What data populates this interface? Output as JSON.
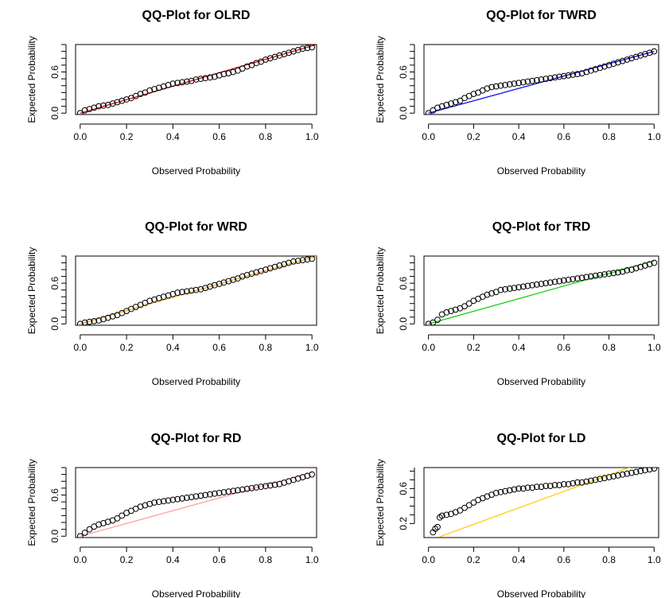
{
  "chart_data": [
    {
      "type": "scatter",
      "title": "QQ-Plot for OLRD",
      "xlabel": "Observed Probability",
      "ylabel": "Expected Probability",
      "xlim": [
        -0.02,
        1.02
      ],
      "ylim": [
        -0.02,
        1.0
      ],
      "xticks": [
        "0.0",
        "0.2",
        "0.4",
        "0.6",
        "0.8",
        "1.0"
      ],
      "yticks": [
        "0.0",
        "0.6"
      ],
      "line_color": "#cc0000",
      "reference_line": {
        "x": [
          0.0,
          1.02
        ],
        "y": [
          0.0,
          1.0
        ]
      },
      "points": {
        "x": [
          0.0,
          0.02,
          0.04,
          0.06,
          0.08,
          0.1,
          0.12,
          0.14,
          0.16,
          0.18,
          0.2,
          0.22,
          0.24,
          0.26,
          0.28,
          0.3,
          0.32,
          0.34,
          0.36,
          0.38,
          0.4,
          0.42,
          0.44,
          0.46,
          0.48,
          0.5,
          0.52,
          0.54,
          0.56,
          0.58,
          0.6,
          0.62,
          0.64,
          0.66,
          0.68,
          0.7,
          0.72,
          0.74,
          0.76,
          0.78,
          0.8,
          0.82,
          0.84,
          0.86,
          0.88,
          0.9,
          0.92,
          0.94,
          0.96,
          0.98,
          1.0
        ],
        "y": [
          0.0,
          0.04,
          0.06,
          0.08,
          0.1,
          0.11,
          0.12,
          0.14,
          0.16,
          0.18,
          0.2,
          0.22,
          0.25,
          0.28,
          0.3,
          0.33,
          0.35,
          0.37,
          0.39,
          0.41,
          0.43,
          0.44,
          0.45,
          0.46,
          0.47,
          0.49,
          0.5,
          0.51,
          0.52,
          0.53,
          0.55,
          0.57,
          0.58,
          0.6,
          0.62,
          0.65,
          0.68,
          0.7,
          0.73,
          0.75,
          0.78,
          0.8,
          0.82,
          0.84,
          0.86,
          0.88,
          0.9,
          0.92,
          0.94,
          0.95,
          0.96
        ]
      }
    },
    {
      "type": "scatter",
      "title": "QQ-Plot for TWRD",
      "xlabel": "Observed Probability",
      "ylabel": "Expected Probability",
      "xlim": [
        -0.02,
        1.02
      ],
      "ylim": [
        -0.02,
        1.0
      ],
      "xticks": [
        "0.0",
        "0.2",
        "0.4",
        "0.6",
        "0.8",
        "1.0"
      ],
      "yticks": [
        "0.0",
        "0.6"
      ],
      "line_color": "#0000ee",
      "reference_line": {
        "x": [
          0.0,
          1.0
        ],
        "y": [
          0.0,
          0.9
        ]
      },
      "points": {
        "x": [
          0.0,
          0.02,
          0.04,
          0.06,
          0.08,
          0.1,
          0.12,
          0.14,
          0.16,
          0.18,
          0.2,
          0.22,
          0.24,
          0.26,
          0.28,
          0.3,
          0.32,
          0.34,
          0.36,
          0.38,
          0.4,
          0.42,
          0.44,
          0.46,
          0.48,
          0.5,
          0.52,
          0.54,
          0.56,
          0.58,
          0.6,
          0.62,
          0.64,
          0.66,
          0.68,
          0.7,
          0.72,
          0.74,
          0.76,
          0.78,
          0.8,
          0.82,
          0.84,
          0.86,
          0.88,
          0.9,
          0.92,
          0.94,
          0.96,
          0.98,
          1.0
        ],
        "y": [
          0.0,
          0.04,
          0.08,
          0.1,
          0.12,
          0.14,
          0.16,
          0.18,
          0.22,
          0.25,
          0.28,
          0.3,
          0.33,
          0.36,
          0.38,
          0.39,
          0.4,
          0.41,
          0.42,
          0.43,
          0.44,
          0.45,
          0.46,
          0.47,
          0.48,
          0.49,
          0.5,
          0.51,
          0.52,
          0.53,
          0.54,
          0.55,
          0.56,
          0.57,
          0.58,
          0.6,
          0.62,
          0.64,
          0.66,
          0.68,
          0.7,
          0.72,
          0.74,
          0.76,
          0.78,
          0.8,
          0.82,
          0.84,
          0.86,
          0.88,
          0.9
        ]
      }
    },
    {
      "type": "scatter",
      "title": "QQ-Plot for WRD",
      "xlabel": "Observed Probability",
      "ylabel": "Expected Probability",
      "xlim": [
        -0.02,
        1.02
      ],
      "ylim": [
        -0.02,
        1.0
      ],
      "xticks": [
        "0.0",
        "0.2",
        "0.4",
        "0.6",
        "0.8",
        "1.0"
      ],
      "yticks": [
        "0.0",
        "0.6"
      ],
      "line_color": "#f0a020",
      "reference_line": {
        "x": [
          0.0,
          1.02
        ],
        "y": [
          0.0,
          1.0
        ]
      },
      "points": {
        "x": [
          0.0,
          0.02,
          0.04,
          0.06,
          0.08,
          0.1,
          0.12,
          0.14,
          0.16,
          0.18,
          0.2,
          0.22,
          0.24,
          0.26,
          0.28,
          0.3,
          0.32,
          0.34,
          0.36,
          0.38,
          0.4,
          0.42,
          0.44,
          0.46,
          0.48,
          0.5,
          0.52,
          0.54,
          0.56,
          0.58,
          0.6,
          0.62,
          0.64,
          0.66,
          0.68,
          0.7,
          0.72,
          0.74,
          0.76,
          0.78,
          0.8,
          0.82,
          0.84,
          0.86,
          0.88,
          0.9,
          0.92,
          0.94,
          0.96,
          0.98,
          1.0
        ],
        "y": [
          0.0,
          0.02,
          0.03,
          0.04,
          0.05,
          0.07,
          0.09,
          0.11,
          0.13,
          0.16,
          0.19,
          0.22,
          0.25,
          0.28,
          0.31,
          0.34,
          0.36,
          0.38,
          0.4,
          0.42,
          0.44,
          0.46,
          0.47,
          0.48,
          0.49,
          0.5,
          0.51,
          0.53,
          0.55,
          0.57,
          0.59,
          0.61,
          0.63,
          0.65,
          0.67,
          0.7,
          0.72,
          0.74,
          0.76,
          0.78,
          0.8,
          0.82,
          0.84,
          0.86,
          0.88,
          0.9,
          0.92,
          0.93,
          0.94,
          0.95,
          0.96
        ]
      }
    },
    {
      "type": "scatter",
      "title": "QQ-Plot for TRD",
      "xlabel": "Observed Probability",
      "ylabel": "Expected Probability",
      "xlim": [
        -0.02,
        1.02
      ],
      "ylim": [
        -0.02,
        1.0
      ],
      "xticks": [
        "0.0",
        "0.2",
        "0.4",
        "0.6",
        "0.8",
        "1.0"
      ],
      "yticks": [
        "0.0",
        "0.6"
      ],
      "line_color": "#00cc00",
      "reference_line": {
        "x": [
          0.0,
          1.0
        ],
        "y": [
          0.0,
          0.93
        ]
      },
      "points": {
        "x": [
          0.0,
          0.02,
          0.04,
          0.06,
          0.08,
          0.1,
          0.12,
          0.14,
          0.16,
          0.18,
          0.2,
          0.22,
          0.24,
          0.26,
          0.28,
          0.3,
          0.32,
          0.34,
          0.36,
          0.38,
          0.4,
          0.42,
          0.44,
          0.46,
          0.48,
          0.5,
          0.52,
          0.54,
          0.56,
          0.58,
          0.6,
          0.62,
          0.64,
          0.66,
          0.68,
          0.7,
          0.72,
          0.74,
          0.76,
          0.78,
          0.8,
          0.82,
          0.84,
          0.86,
          0.88,
          0.9,
          0.92,
          0.94,
          0.96,
          0.98,
          1.0
        ],
        "y": [
          0.0,
          0.02,
          0.06,
          0.14,
          0.17,
          0.19,
          0.21,
          0.23,
          0.26,
          0.3,
          0.34,
          0.37,
          0.4,
          0.43,
          0.45,
          0.47,
          0.5,
          0.51,
          0.52,
          0.53,
          0.54,
          0.55,
          0.56,
          0.57,
          0.58,
          0.59,
          0.6,
          0.61,
          0.62,
          0.63,
          0.64,
          0.65,
          0.66,
          0.67,
          0.68,
          0.69,
          0.7,
          0.71,
          0.72,
          0.73,
          0.74,
          0.75,
          0.76,
          0.77,
          0.79,
          0.8,
          0.82,
          0.84,
          0.86,
          0.88,
          0.9
        ]
      }
    },
    {
      "type": "scatter",
      "title": "QQ-Plot for RD",
      "xlabel": "Observed Probability",
      "ylabel": "Expected Probability",
      "xlim": [
        -0.02,
        1.02
      ],
      "ylim": [
        -0.02,
        1.0
      ],
      "xticks": [
        "0.0",
        "0.2",
        "0.4",
        "0.6",
        "0.8",
        "1.0"
      ],
      "yticks": [
        "0.0",
        "0.6"
      ],
      "line_color": "#ff9999",
      "reference_line": {
        "x": [
          0.0,
          1.0
        ],
        "y": [
          0.0,
          0.93
        ]
      },
      "points": {
        "x": [
          0.0,
          0.02,
          0.04,
          0.06,
          0.08,
          0.1,
          0.12,
          0.14,
          0.16,
          0.18,
          0.2,
          0.22,
          0.24,
          0.26,
          0.28,
          0.3,
          0.32,
          0.34,
          0.36,
          0.38,
          0.4,
          0.42,
          0.44,
          0.46,
          0.48,
          0.5,
          0.52,
          0.54,
          0.56,
          0.58,
          0.6,
          0.62,
          0.64,
          0.66,
          0.68,
          0.7,
          0.72,
          0.74,
          0.76,
          0.78,
          0.8,
          0.82,
          0.84,
          0.86,
          0.88,
          0.9,
          0.92,
          0.94,
          0.96,
          0.98,
          1.0
        ],
        "y": [
          0.0,
          0.05,
          0.1,
          0.14,
          0.17,
          0.19,
          0.21,
          0.23,
          0.26,
          0.3,
          0.34,
          0.37,
          0.4,
          0.43,
          0.45,
          0.47,
          0.49,
          0.5,
          0.51,
          0.52,
          0.53,
          0.54,
          0.55,
          0.56,
          0.57,
          0.58,
          0.59,
          0.6,
          0.61,
          0.62,
          0.63,
          0.64,
          0.65,
          0.66,
          0.67,
          0.68,
          0.69,
          0.7,
          0.71,
          0.72,
          0.73,
          0.74,
          0.75,
          0.76,
          0.78,
          0.8,
          0.82,
          0.84,
          0.86,
          0.88,
          0.9
        ]
      }
    },
    {
      "type": "scatter",
      "title": "QQ-Plot for LD",
      "xlabel": "Observed Probability",
      "ylabel": "Expected Probability",
      "xlim": [
        -0.02,
        1.02
      ],
      "ylim": [
        0.04,
        0.84
      ],
      "xticks": [
        "0.0",
        "0.2",
        "0.4",
        "0.6",
        "0.8",
        "1.0"
      ],
      "yticks": [
        "0.2",
        "0.6"
      ],
      "line_color": "#ffcc00",
      "reference_line": {
        "x": [
          0.05,
          0.9
        ],
        "y": [
          0.05,
          0.85
        ]
      },
      "points": {
        "x": [
          0.02,
          0.03,
          0.04,
          0.05,
          0.06,
          0.08,
          0.1,
          0.12,
          0.14,
          0.16,
          0.18,
          0.2,
          0.22,
          0.24,
          0.26,
          0.28,
          0.3,
          0.32,
          0.34,
          0.36,
          0.38,
          0.4,
          0.42,
          0.44,
          0.46,
          0.48,
          0.5,
          0.52,
          0.54,
          0.56,
          0.58,
          0.6,
          0.62,
          0.64,
          0.66,
          0.68,
          0.7,
          0.72,
          0.74,
          0.76,
          0.78,
          0.8,
          0.82,
          0.84,
          0.86,
          0.88,
          0.9,
          0.92,
          0.94,
          0.96,
          0.98,
          1.0
        ],
        "y": [
          0.1,
          0.14,
          0.16,
          0.27,
          0.29,
          0.3,
          0.31,
          0.33,
          0.35,
          0.38,
          0.41,
          0.44,
          0.47,
          0.49,
          0.51,
          0.53,
          0.55,
          0.56,
          0.57,
          0.58,
          0.59,
          0.6,
          0.6,
          0.61,
          0.61,
          0.62,
          0.62,
          0.63,
          0.63,
          0.64,
          0.64,
          0.65,
          0.65,
          0.66,
          0.67,
          0.67,
          0.68,
          0.69,
          0.7,
          0.71,
          0.72,
          0.73,
          0.74,
          0.75,
          0.76,
          0.77,
          0.78,
          0.79,
          0.8,
          0.81,
          0.82,
          0.83
        ]
      }
    }
  ]
}
